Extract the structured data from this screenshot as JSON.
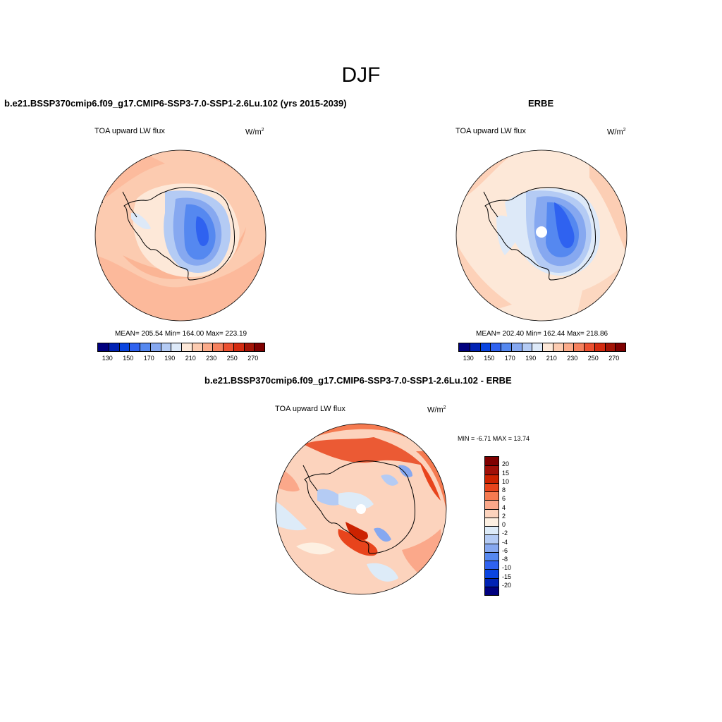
{
  "title": "DJF",
  "colors": {
    "abs_scale": [
      "#00007f",
      "#0022b4",
      "#0a44e0",
      "#2f62f0",
      "#5588f0",
      "#86a8f0",
      "#b4cbf4",
      "#dde9f8",
      "#fde8d8",
      "#fccbb0",
      "#fbab8a",
      "#f5815e",
      "#ec5030",
      "#d42b10",
      "#a41406",
      "#7f0000"
    ],
    "diff_scale": [
      "#7f0000",
      "#a01008",
      "#cc2200",
      "#e8441c",
      "#f57a50",
      "#fba88a",
      "#fcd3bd",
      "#fdf0e2",
      "#ddebf8",
      "#b4cbf4",
      "#86a8f0",
      "#5588f0",
      "#2f62f0",
      "#0a44e0",
      "#0022b4",
      "#00007f"
    ]
  },
  "panel_left": {
    "header": "b.e21.BSSP370cmip6.f09_g17.CMIP6-SSP3-7.0-SSP1-2.6Lu.102 (yrs 2015-2039)",
    "variable": "TOA upward LW flux",
    "units_base": "W/m",
    "units_exp": "2",
    "stats": "MEAN= 205.54  Min= 164.00  Max= 223.19",
    "ticks": [
      "130",
      "150",
      "170",
      "190",
      "210",
      "230",
      "250",
      "270"
    ]
  },
  "panel_right": {
    "header": "ERBE",
    "variable": "TOA upward LW flux",
    "units_base": "W/m",
    "units_exp": "2",
    "stats": "MEAN= 202.40  Min= 162.44  Max= 218.86",
    "ticks": [
      "130",
      "150",
      "170",
      "190",
      "210",
      "230",
      "250",
      "270"
    ]
  },
  "panel_diff": {
    "header": "b.e21.BSSP370cmip6.f09_g17.CMIP6-SSP3-7.0-SSP1-2.6Lu.102 - ERBE",
    "variable": "TOA upward LW flux",
    "units_base": "W/m",
    "units_exp": "2",
    "minmax": "MIN =  -6.71 MAX =  13.74",
    "ticks": [
      "20",
      "15",
      "10",
      "8",
      "6",
      "4",
      "2",
      "0",
      "-2",
      "-4",
      "-6",
      "-8",
      "-10",
      "-15",
      "-20"
    ]
  }
}
